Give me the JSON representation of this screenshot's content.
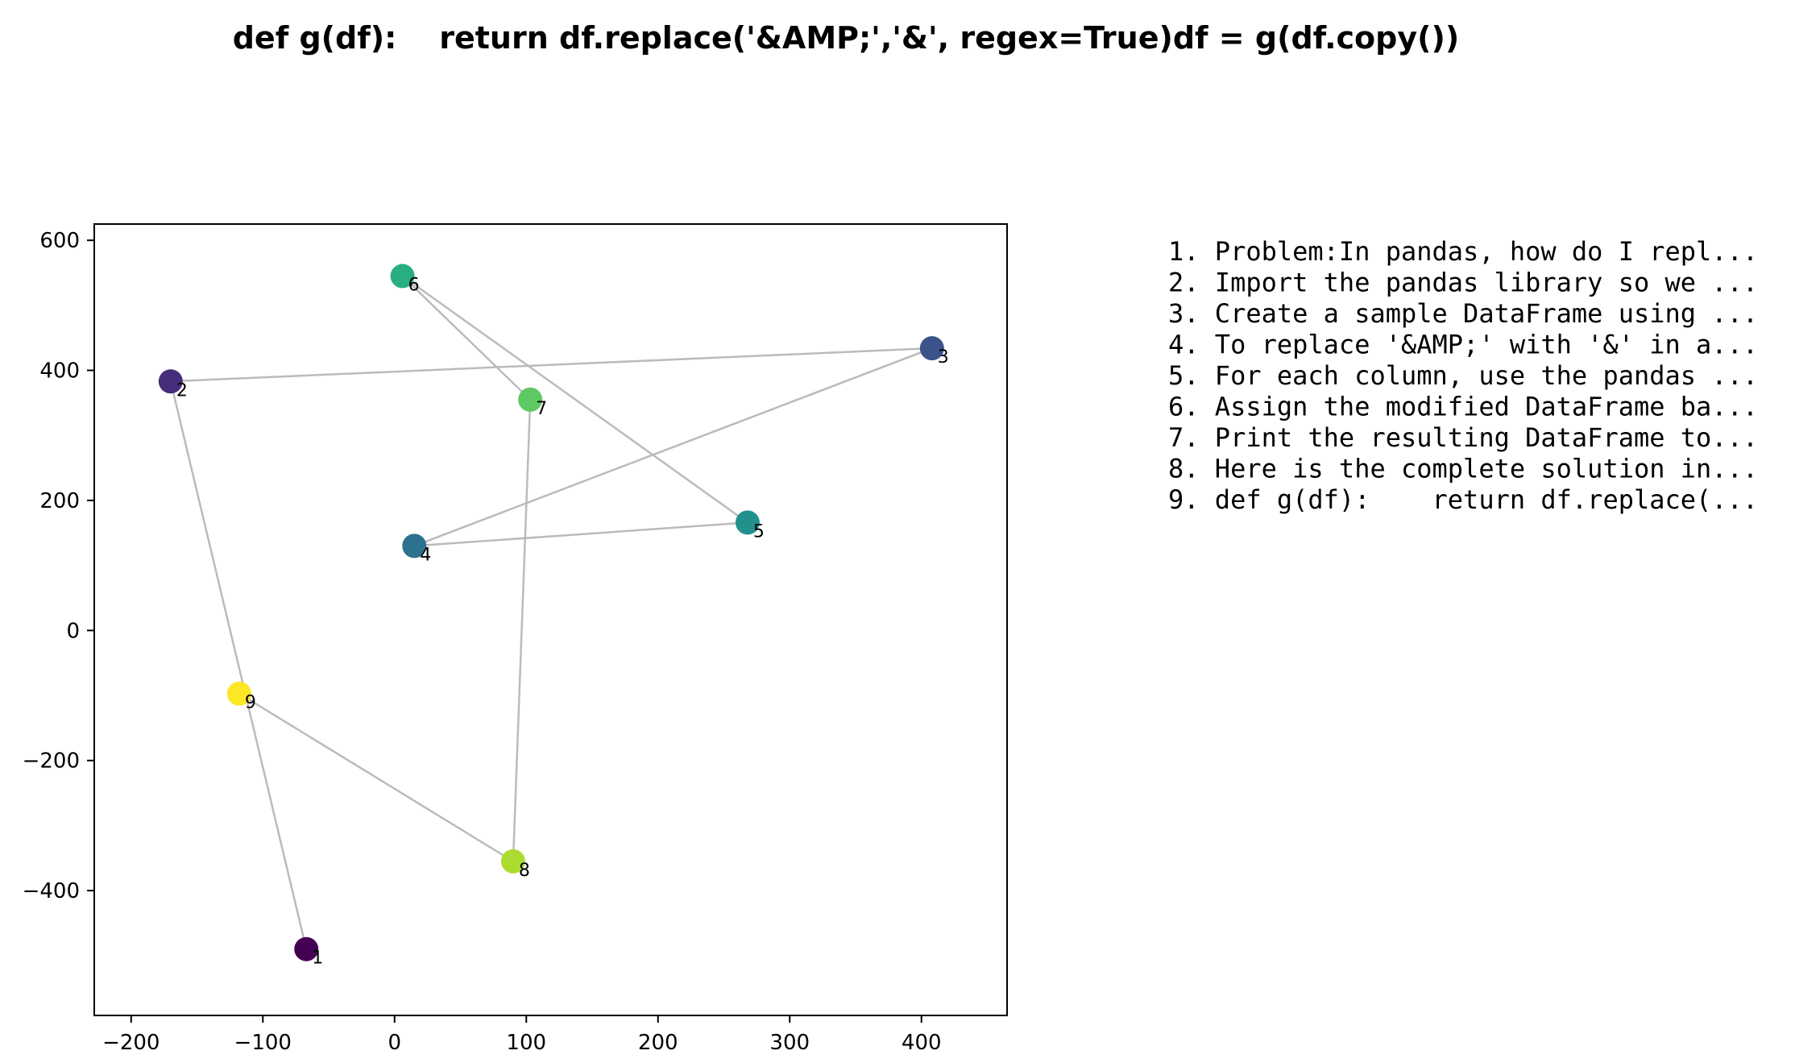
{
  "chart_data": {
    "type": "scatter",
    "title": "def g(df):    return df.replace('&AMP;','&', regex=True)df = g(df.copy())",
    "xlabel": "",
    "ylabel": "",
    "xlim": [
      -228,
      465
    ],
    "ylim": [
      -592,
      625
    ],
    "xticks": [
      -200,
      -100,
      0,
      100,
      200,
      300,
      400
    ],
    "yticks": [
      -400,
      -200,
      0,
      200,
      400,
      600
    ],
    "xtick_labels": [
      "−200",
      "−100",
      "0",
      "100",
      "200",
      "300",
      "400"
    ],
    "ytick_labels": [
      "−400",
      "−200",
      "0",
      "200",
      "400",
      "600"
    ],
    "grid": false,
    "connected_in_order": true,
    "points": [
      {
        "label": "1",
        "x": -67,
        "y": -490,
        "color": "#440154"
      },
      {
        "label": "2",
        "x": -170,
        "y": 383,
        "color": "#472d7b"
      },
      {
        "label": "3",
        "x": 408,
        "y": 434,
        "color": "#3b528b"
      },
      {
        "label": "4",
        "x": 15,
        "y": 130,
        "color": "#2c728e"
      },
      {
        "label": "5",
        "x": 268,
        "y": 166,
        "color": "#21918c"
      },
      {
        "label": "6",
        "x": 6,
        "y": 545,
        "color": "#28ae80"
      },
      {
        "label": "7",
        "x": 103,
        "y": 355,
        "color": "#5ec962"
      },
      {
        "label": "8",
        "x": 90,
        "y": -355,
        "color": "#addc30"
      },
      {
        "label": "9",
        "x": -118,
        "y": -97,
        "color": "#fde725"
      }
    ],
    "line_color": "#bbbbbb",
    "legend_placement": "right",
    "legend": [
      "1. Problem:In pandas, how do I repl...",
      "2. Import the pandas library so we ...",
      "3. Create a sample DataFrame using ...",
      "4. To replace '&AMP;' with '&' in a...",
      "5. For each column, use the pandas ...",
      "6. Assign the modified DataFrame ba...",
      "7. Print the resulting DataFrame to...",
      "8. Here is the complete solution in...",
      "9. def g(df):    return df.replace(..."
    ]
  }
}
